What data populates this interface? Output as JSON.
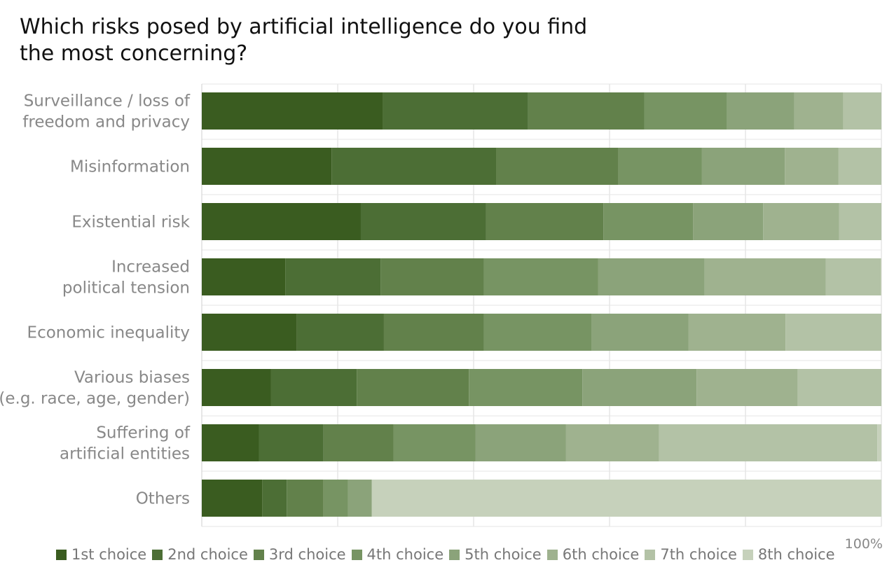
{
  "chart_data": {
    "type": "bar",
    "orientation": "horizontal",
    "stacked": true,
    "normalized": "percent",
    "title_lines": [
      "Which risks posed by artificial intelligence do you find",
      "the most concerning?"
    ],
    "xlim": [
      0,
      100
    ],
    "x_end_label": "100%",
    "grid": true,
    "legend_position": "bottom",
    "categories": [
      {
        "lines": [
          "Surveillance / loss of",
          "freedom and privacy"
        ]
      },
      {
        "lines": [
          "Misinformation"
        ]
      },
      {
        "lines": [
          "Existential risk"
        ]
      },
      {
        "lines": [
          "Increased",
          "political tension"
        ]
      },
      {
        "lines": [
          "Economic inequality"
        ]
      },
      {
        "lines": [
          "Various biases",
          "(e.g. race, age, gender)"
        ]
      },
      {
        "lines": [
          "Suffering of",
          "artificial entities"
        ]
      },
      {
        "lines": [
          "Others"
        ]
      }
    ],
    "series": [
      {
        "name": "1st choice",
        "color": "#3a5c20",
        "values": [
          26.6,
          19.1,
          23.4,
          12.3,
          14.0,
          10.2,
          8.4,
          8.9
        ]
      },
      {
        "name": "2nd choice",
        "color": "#4c6e35",
        "values": [
          21.4,
          24.2,
          18.4,
          14.0,
          12.8,
          12.6,
          9.5,
          3.6
        ]
      },
      {
        "name": "3rd choice",
        "color": "#62814b",
        "values": [
          17.1,
          18.0,
          17.3,
          15.2,
          14.7,
          16.5,
          10.3,
          5.4
        ]
      },
      {
        "name": "4th choice",
        "color": "#779463",
        "values": [
          12.2,
          12.3,
          13.2,
          16.8,
          15.9,
          16.7,
          12.1,
          3.6
        ]
      },
      {
        "name": "5th choice",
        "color": "#8ba37a",
        "values": [
          9.9,
          12.2,
          10.3,
          15.7,
          14.2,
          16.8,
          13.3,
          3.5
        ]
      },
      {
        "name": "6th choice",
        "color": "#9fb28f",
        "values": [
          7.2,
          7.9,
          11.2,
          17.8,
          14.3,
          14.9,
          13.7,
          0.0
        ]
      },
      {
        "name": "7th choice",
        "color": "#b3c2a6",
        "values": [
          5.6,
          6.3,
          6.2,
          8.1,
          14.1,
          12.3,
          32.1,
          0.0
        ]
      },
      {
        "name": "8th choice",
        "color": "#c6d1bb",
        "values": [
          0.0,
          0.0,
          0.0,
          0.1,
          0.0,
          0.0,
          0.6,
          75.0
        ]
      }
    ]
  }
}
